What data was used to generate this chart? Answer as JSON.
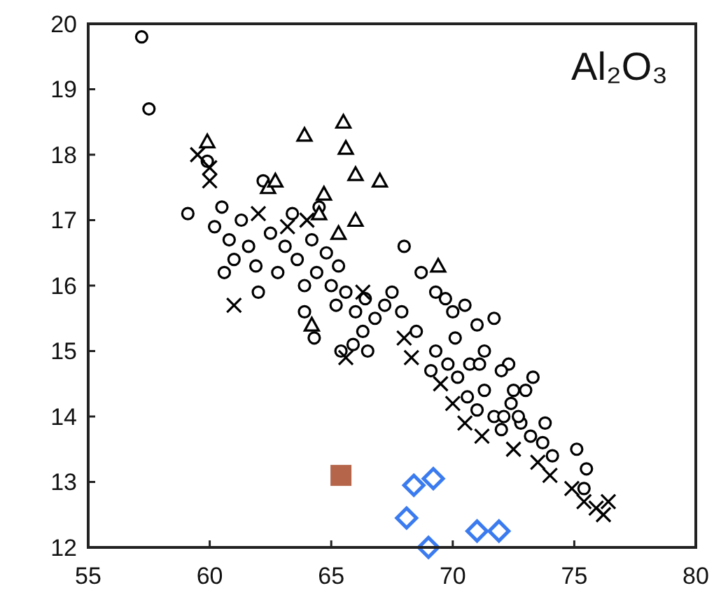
{
  "chart_data": {
    "type": "scatter",
    "title": "Al₂O₃",
    "xlim": [
      55,
      80
    ],
    "ylim": [
      12,
      20
    ],
    "xticks": [
      55,
      60,
      65,
      70,
      75,
      80
    ],
    "yticks": [
      12,
      13,
      14,
      15,
      16,
      17,
      18,
      19,
      20
    ],
    "grid": false,
    "series": [
      {
        "color": "#000000",
        "marker": "circle",
        "x": [
          57.2,
          57.5,
          59.1,
          59.9,
          60.2,
          60.5,
          60.8,
          61.0,
          60.6,
          61.3,
          61.6,
          61.9,
          62.2,
          62.5,
          62.0,
          62.8,
          63.1,
          63.4,
          63.6,
          63.9,
          64.2,
          64.5,
          64.4,
          64.8,
          65.0,
          65.2,
          65.3,
          63.9,
          64.3,
          65.6,
          66.0,
          66.4,
          66.8,
          67.2,
          67.5,
          67.9,
          65.4,
          65.9,
          66.3,
          66.5,
          68.5,
          69.3,
          69.8,
          70.2,
          70.6,
          71.0,
          71.3,
          71.7,
          72.0,
          72.4,
          72.8,
          73.2,
          73.7,
          74.1,
          72.3,
          69.1
        ],
        "values": [
          19.8,
          18.7,
          17.1,
          17.9,
          16.9,
          17.2,
          16.7,
          16.4,
          16.2,
          17.0,
          16.6,
          16.3,
          17.6,
          16.8,
          15.9,
          16.2,
          16.6,
          17.1,
          16.4,
          16.0,
          16.7,
          17.2,
          16.2,
          16.5,
          16.0,
          15.7,
          16.3,
          15.6,
          15.2,
          15.9,
          15.6,
          15.8,
          15.5,
          15.7,
          15.9,
          15.6,
          15.0,
          15.1,
          15.3,
          15.0,
          15.3,
          15.0,
          14.8,
          14.6,
          14.3,
          14.1,
          14.4,
          14.0,
          13.8,
          14.2,
          13.9,
          13.7,
          13.6,
          13.4,
          14.8,
          14.7
        ]
      },
      {
        "color": "#000000",
        "marker": "cross",
        "x": [
          59.5,
          60.0,
          60.0,
          61.0,
          62.0,
          63.2,
          64.0,
          65.6,
          66.3,
          68.0,
          68.3,
          69.5,
          70.0,
          70.5,
          71.2,
          72.5,
          73.5,
          74.0,
          74.9,
          75.4,
          75.9,
          76.2,
          76.4
        ],
        "values": [
          18.0,
          17.8,
          17.6,
          15.7,
          17.1,
          16.9,
          17.0,
          14.9,
          15.9,
          15.2,
          14.9,
          14.5,
          14.2,
          13.9,
          13.7,
          13.5,
          13.3,
          13.1,
          12.9,
          12.7,
          12.6,
          12.5,
          12.7
        ]
      },
      {
        "color": "#000000",
        "marker": "triangle",
        "x": [
          62.4,
          62.7,
          64.7,
          65.3,
          64.2,
          66.0,
          64.5
        ],
        "values": [
          17.5,
          17.6,
          17.4,
          16.8,
          15.4,
          17.0,
          17.1
        ]
      },
      {
        "color": "#000000",
        "marker": "triangle",
        "x": [
          59.9,
          63.9,
          65.5,
          65.6,
          66.0,
          67.0,
          69.4
        ],
        "values": [
          18.2,
          18.3,
          18.5,
          18.1,
          17.7,
          17.6,
          16.3
        ]
      },
      {
        "color": "#000000",
        "marker": "circle",
        "x": [
          68.0,
          68.7,
          69.3,
          69.7,
          70.0,
          70.5,
          70.1,
          71.0,
          71.7,
          71.3,
          70.7,
          71.1,
          72.0,
          73.3,
          73.0,
          72.5,
          72.1,
          72.7,
          73.8,
          75.1,
          75.5,
          75.4
        ],
        "values": [
          16.6,
          16.2,
          15.9,
          15.8,
          15.6,
          15.7,
          15.2,
          15.4,
          15.5,
          15.0,
          14.8,
          14.8,
          14.7,
          14.6,
          14.4,
          14.4,
          14.0,
          14.0,
          13.9,
          13.5,
          13.2,
          12.9
        ]
      },
      {
        "color": "#b5654a",
        "marker": "square",
        "x": [
          65.4
        ],
        "values": [
          13.1
        ]
      },
      {
        "color": "#3b7bf0",
        "marker": "diamond",
        "x": [
          68.4,
          69.2,
          68.1,
          69.0,
          71.0,
          71.9
        ],
        "values": [
          12.95,
          13.05,
          12.45,
          12.0,
          12.25,
          12.25
        ]
      }
    ]
  }
}
